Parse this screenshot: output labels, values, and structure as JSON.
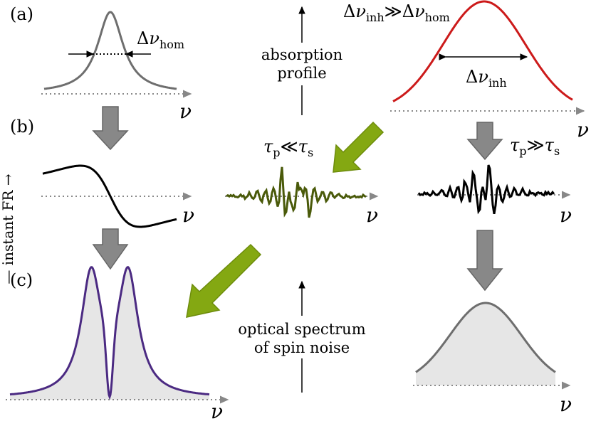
{
  "panels": {
    "a": {
      "label": "(a)"
    },
    "b": {
      "label": "(b)"
    },
    "c": {
      "label": "(c)"
    }
  },
  "labels": {
    "delta": "Δ",
    "nu": "ν",
    "hom": "hom",
    "inh": "inh",
    "much_greater": "≫",
    "much_less": "≪",
    "tau": "τ",
    "p": "p",
    "s": "s",
    "absorption_profile_line1": "absorption",
    "absorption_profile_line2": "profile",
    "optical_spectrum_line1": "optical spectrum",
    "optical_spectrum_line2": "of spin noise",
    "instant_fr": "— instant FR →"
  },
  "colors": {
    "gray_curve": "#6e6e6e",
    "red_curve": "#cc1a1a",
    "olive_curve": "#4a5a0a",
    "purple_curve": "#4b2a82",
    "fill_gray": "#e6e6e6",
    "arrow_gray": "#888888",
    "arrow_green": "#84a812"
  }
}
